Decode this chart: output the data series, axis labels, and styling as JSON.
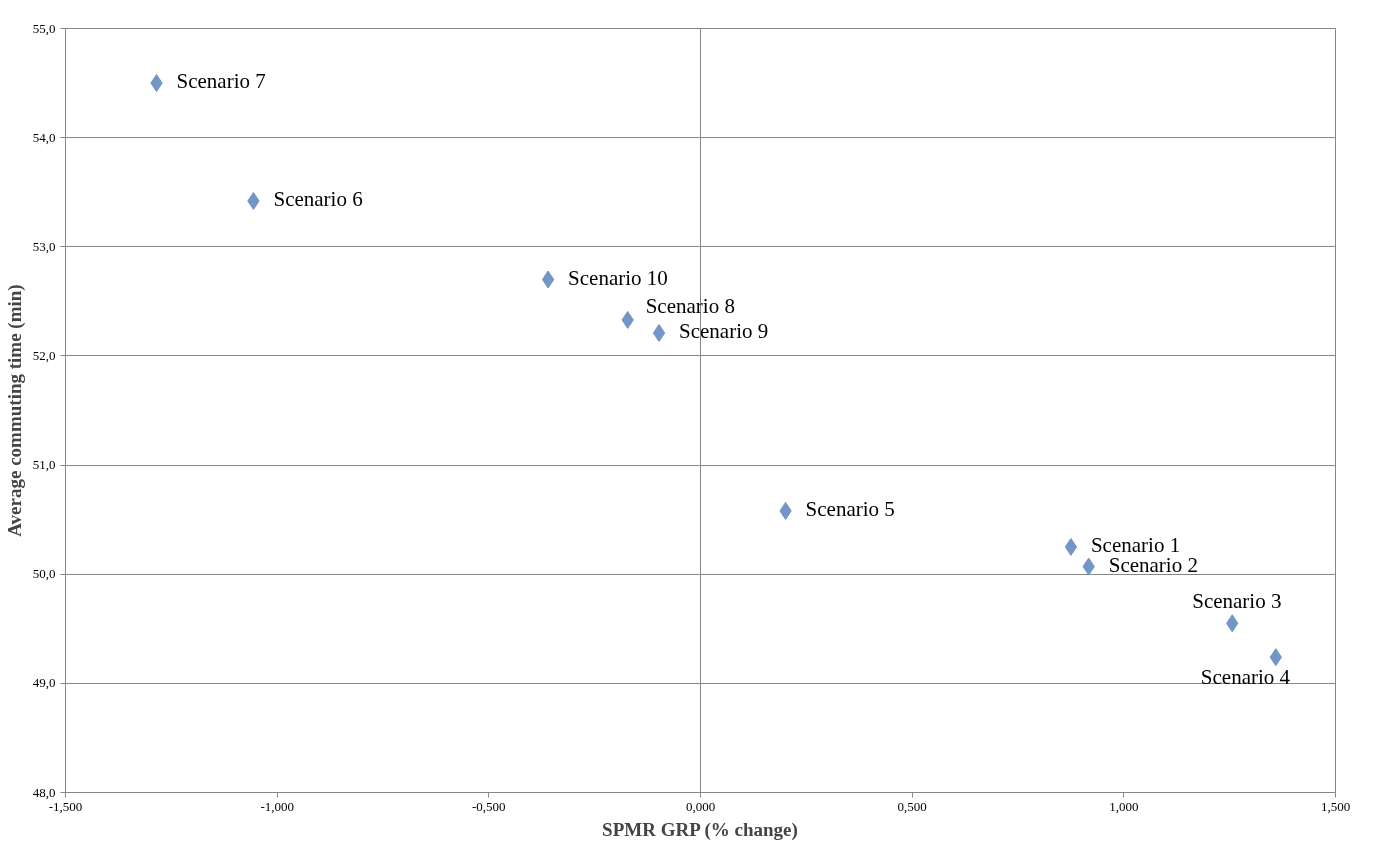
{
  "chart_data": {
    "type": "scatter",
    "xlabel": "SPMR GRP (% change)",
    "ylabel": "Average commuting time (min)",
    "x": [
      0.875,
      0.917,
      1.256,
      1.359,
      0.201,
      -1.056,
      -1.285,
      -0.172,
      -0.098,
      -0.36
    ],
    "series": [
      {
        "color": "#7396c6",
        "values": [
          50.25,
          50.07,
          49.55,
          49.24,
          50.58,
          53.42,
          54.5,
          52.33,
          52.21,
          52.7
        ]
      }
    ],
    "annotations": [
      {
        "text": "Scenario 1",
        "x": 0.875,
        "y": 50.25
      },
      {
        "text": "Scenario 2",
        "x": 0.917,
        "y": 50.07
      },
      {
        "text": "Scenario 3",
        "x": 1.256,
        "y": 49.55
      },
      {
        "text": "Scenario 4",
        "x": 1.359,
        "y": 49.24
      },
      {
        "text": "Scenario 5",
        "x": 0.201,
        "y": 50.58
      },
      {
        "text": "Scenario 6",
        "x": -1.056,
        "y": 53.42
      },
      {
        "text": "Scenario 7",
        "x": -1.285,
        "y": 54.5
      },
      {
        "text": "Scenario 8",
        "x": -0.172,
        "y": 52.33
      },
      {
        "text": "Scenario 9",
        "x": -0.098,
        "y": 52.21
      },
      {
        "text": "Scenario 10",
        "x": -0.36,
        "y": 52.7
      }
    ],
    "xlim": [
      -1.5,
      1.5
    ],
    "ylim": [
      48,
      55
    ],
    "xticks": [
      {
        "value": -1.5,
        "label": "-1,500"
      },
      {
        "value": -1,
        "label": "-1,000"
      },
      {
        "value": -0.5,
        "label": "-0,500"
      },
      {
        "value": 0,
        "label": "0,000"
      },
      {
        "value": 0.5,
        "label": "0,500"
      },
      {
        "value": 1,
        "label": "1,000"
      },
      {
        "value": 1.5,
        "label": "1,500"
      }
    ],
    "yticks": [
      {
        "value": 48,
        "label": "48,0"
      },
      {
        "value": 49,
        "label": "49,0"
      },
      {
        "value": 50,
        "label": "50,0"
      },
      {
        "value": 51,
        "label": "51,0"
      },
      {
        "value": 52,
        "label": "52,0"
      },
      {
        "value": 53,
        "label": "53,0"
      },
      {
        "value": 54,
        "label": "54,0"
      },
      {
        "value": 55,
        "label": "55,0"
      }
    ],
    "ref_lines": [
      {
        "axis": "x",
        "value": 0,
        "color": "#868686"
      }
    ],
    "grid": "y",
    "marker": "diamond"
  }
}
